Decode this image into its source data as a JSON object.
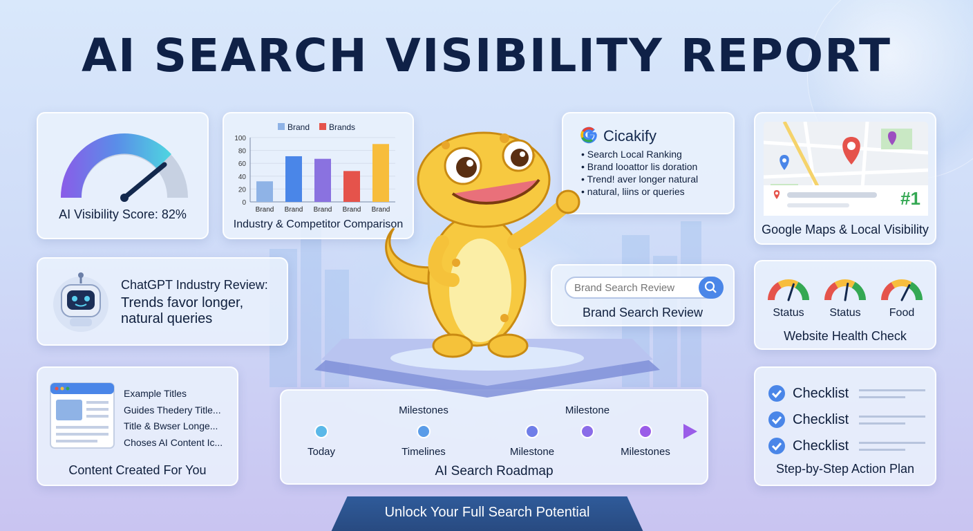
{
  "title": "AI SEARCH VISIBILITY REPORT",
  "score_card": {
    "label": "AI Visibility Score: 82%",
    "gauge_value": 0.82
  },
  "comparison_card": {
    "title": "Industry & Competitor Comparison",
    "chart_data": {
      "type": "bar",
      "legend": [
        "Brand",
        "Brands"
      ],
      "categories": [
        "Brand",
        "Brand",
        "Brand",
        "Brand",
        "Brand"
      ],
      "values": [
        32,
        71,
        67,
        48,
        90
      ],
      "colors": [
        "#8fb3e6",
        "#4a86e8",
        "#8a72e0",
        "#e5534b",
        "#f7bd3c"
      ],
      "yticks": [
        "100",
        "80",
        "60",
        "40",
        "20",
        "0"
      ],
      "ylim": [
        0,
        100
      ],
      "legend_colors": [
        "#8fb3e6",
        "#e5534b"
      ]
    }
  },
  "gpt_card": {
    "heading": "ChatGPT Industry Review:",
    "line1": "Trends favor longer,",
    "line2": "natural queries"
  },
  "content_card": {
    "title": "Content Created For You",
    "items": [
      "Example Titles",
      "Guides Thedery Title...",
      "Title & Bwser Longe...",
      "Choses AI Content Ic..."
    ]
  },
  "google_card": {
    "brand": "Cicakify",
    "bullets": [
      "Search Local Ranking",
      "Brand looattor lis doration",
      "Trend! aver longer natural",
      "natural, liins or queries"
    ]
  },
  "brand_card": {
    "placeholder": "Brand Search Review",
    "title": "Brand Search Review"
  },
  "maps_card": {
    "title": "Google Maps & Local Visibility",
    "rank": "#1"
  },
  "health_card": {
    "title": "Website Health Check",
    "gauges": [
      {
        "label": "Status",
        "value": 0.6
      },
      {
        "label": "Status",
        "value": 0.55
      },
      {
        "label": "Food",
        "value": 0.65
      }
    ]
  },
  "check_card": {
    "title": "Step-by-Step Action Plan",
    "items": [
      "Checklist",
      "Checklist",
      "Checklist"
    ]
  },
  "road_card": {
    "title": "AI Search Roadmap",
    "top_labels": [
      "Milestones",
      "Milestone"
    ],
    "bottom_labels": [
      "Today",
      "Timelines",
      "Milestone",
      "Milestones"
    ]
  },
  "footer": "Unlock Your Full Search Potential",
  "colors": {
    "navy": "#0f2147",
    "accent_blue": "#4a86e8",
    "purple": "#8a5ce8",
    "green": "#34a853"
  }
}
